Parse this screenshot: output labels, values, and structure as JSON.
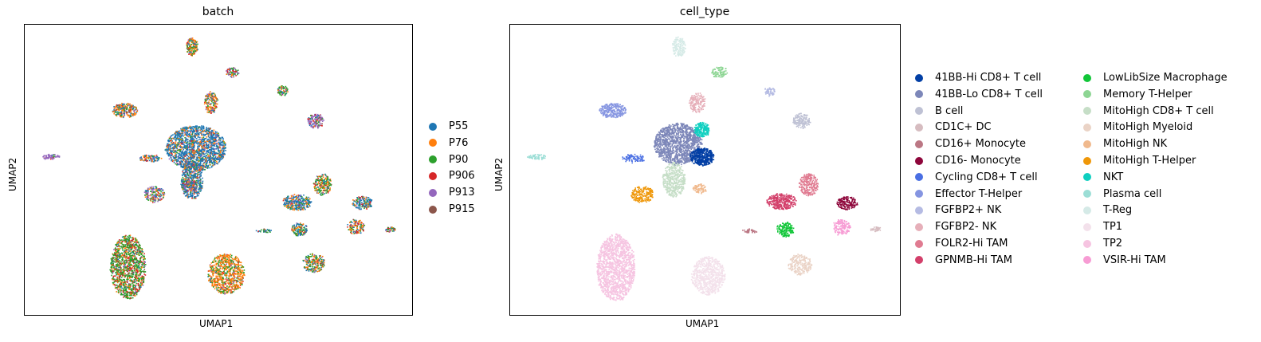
{
  "chart_data": [
    {
      "type": "scatter",
      "title": "batch",
      "xlabel": "UMAP1",
      "ylabel": "UMAP2",
      "grid": false,
      "legend_placement": "right",
      "ticks": false,
      "series": [
        {
          "name": "P55",
          "color": "#1f77b4"
        },
        {
          "name": "P76",
          "color": "#ff7f0e"
        },
        {
          "name": "P90",
          "color": "#2ca02c"
        },
        {
          "name": "P906",
          "color": "#d62728"
        },
        {
          "name": "P913",
          "color": "#9467bd"
        },
        {
          "name": "P915",
          "color": "#8c564b"
        }
      ]
    },
    {
      "type": "scatter",
      "title": "cell_type",
      "xlabel": "UMAP1",
      "ylabel": "UMAP2",
      "grid": false,
      "legend_placement": "right, two columns",
      "ticks": false,
      "series": [
        {
          "name": "41BB-Hi CD8+ T cell",
          "color": "#023fa5"
        },
        {
          "name": "41BB-Lo CD8+ T cell",
          "color": "#7d87b9"
        },
        {
          "name": "B cell",
          "color": "#bec1d4"
        },
        {
          "name": "CD1C+ DC",
          "color": "#d6bcc0"
        },
        {
          "name": "CD16+ Monocyte",
          "color": "#bb7784"
        },
        {
          "name": "CD16- Monocyte",
          "color": "#8e063b"
        },
        {
          "name": "Cycling CD8+ T cell",
          "color": "#4a6fe3"
        },
        {
          "name": "Effector T-Helper",
          "color": "#8595e1"
        },
        {
          "name": "FGFBP2+ NK",
          "color": "#b5bbe3"
        },
        {
          "name": "FGFBP2- NK",
          "color": "#e6afb9"
        },
        {
          "name": "FOLR2-Hi TAM",
          "color": "#e07b91"
        },
        {
          "name": "GPNMB-Hi TAM",
          "color": "#d33f6a"
        },
        {
          "name": "LowLibSize Macrophage",
          "color": "#11c638"
        },
        {
          "name": "Memory T-Helper",
          "color": "#8dd593"
        },
        {
          "name": "MitoHigh CD8+ T cell",
          "color": "#c6dec7"
        },
        {
          "name": "MitoHigh Myeloid",
          "color": "#ead3c6"
        },
        {
          "name": "MitoHigh NK",
          "color": "#f0b98d"
        },
        {
          "name": "MitoHigh T-Helper",
          "color": "#ef9708"
        },
        {
          "name": "NKT",
          "color": "#0fcfc0"
        },
        {
          "name": "Plasma cell",
          "color": "#9cded6"
        },
        {
          "name": "T-Reg",
          "color": "#d5eae7"
        },
        {
          "name": "TP1",
          "color": "#f3e1eb"
        },
        {
          "name": "TP2",
          "color": "#f6c4e1"
        },
        {
          "name": "VSIR-Hi TAM",
          "color": "#f79cd4"
        }
      ]
    }
  ]
}
